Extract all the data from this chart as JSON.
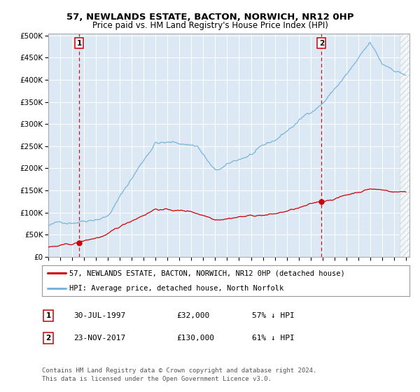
{
  "title1": "57, NEWLANDS ESTATE, BACTON, NORWICH, NR12 0HP",
  "title2": "Price paid vs. HM Land Registry's House Price Index (HPI)",
  "legend1": "57, NEWLANDS ESTATE, BACTON, NORWICH, NR12 0HP (detached house)",
  "legend2": "HPI: Average price, detached house, North Norfolk",
  "note1_label": "1",
  "note1_date": "30-JUL-1997",
  "note1_price": "£32,000",
  "note1_hpi": "57% ↓ HPI",
  "note2_label": "2",
  "note2_date": "23-NOV-2017",
  "note2_price": "£130,000",
  "note2_hpi": "61% ↓ HPI",
  "copyright": "Contains HM Land Registry data © Crown copyright and database right 2024.\nThis data is licensed under the Open Government Licence v3.0.",
  "hpi_color": "#7ab4d8",
  "price_color": "#cc0000",
  "bg_color": "#dce9f5",
  "sale1_year": 1997.58,
  "sale1_price": 32000,
  "sale2_year": 2017.9,
  "sale2_price": 130000,
  "ylim_max": 500000,
  "ylim_min": 0,
  "hatch_start": 2024.5,
  "xlim_min": 1995,
  "xlim_max": 2025.3
}
